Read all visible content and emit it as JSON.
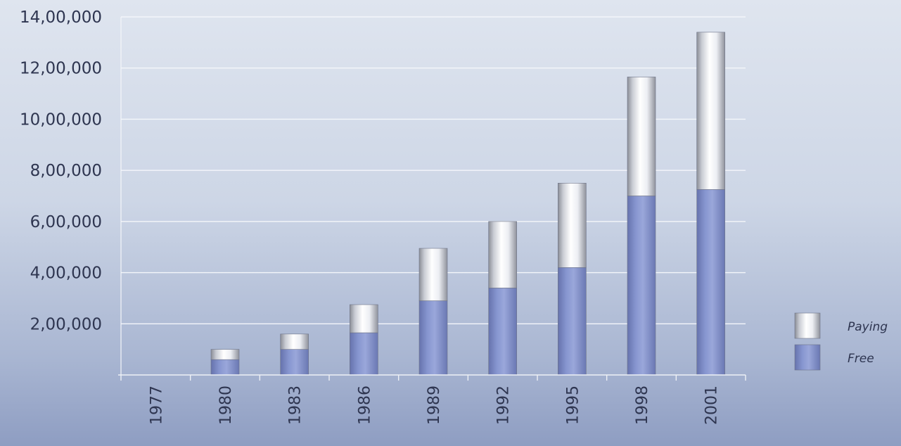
{
  "chart_data": {
    "type": "bar",
    "stacked": true,
    "categories": [
      "1977",
      "1980",
      "1983",
      "1986",
      "1989",
      "1992",
      "1995",
      "1998",
      "2001"
    ],
    "series": [
      {
        "name": "Free",
        "values": [
          0,
          60000,
          100000,
          165000,
          290000,
          340000,
          420000,
          700000,
          725000
        ],
        "color": "#7f8fc8"
      },
      {
        "name": "Paying",
        "values": [
          0,
          40000,
          60000,
          110000,
          205000,
          260000,
          330000,
          465000,
          615000
        ],
        "color": "#e6e8ee"
      }
    ],
    "yticks": [
      {
        "value": 200000,
        "label": "2,00,000"
      },
      {
        "value": 400000,
        "label": "4,00,000"
      },
      {
        "value": 600000,
        "label": "6,00,000"
      },
      {
        "value": 800000,
        "label": "8,00,000"
      },
      {
        "value": 1000000,
        "label": "10,00,000"
      },
      {
        "value": 1200000,
        "label": "12,00,000"
      },
      {
        "value": 1400000,
        "label": "14,00,000"
      }
    ],
    "ylim": [
      0,
      1400000
    ],
    "grid": true,
    "legend": {
      "position": "right",
      "entries": [
        "Paying",
        "Free"
      ]
    }
  }
}
